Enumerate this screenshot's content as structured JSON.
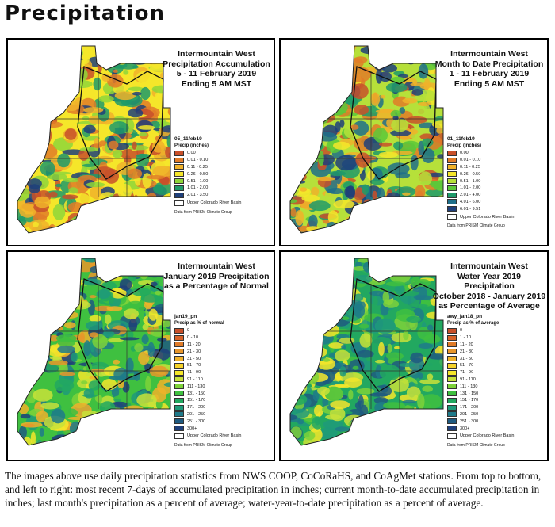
{
  "page_title": "Precipitation",
  "panels": [
    {
      "id": "p1",
      "title": [
        "Intermountain West",
        "Precipitation Accumulation",
        "5 - 11 February 2019",
        "Ending 5 AM MST"
      ],
      "legend_name": "05_11feb19",
      "legend_unit": "Precip (inches)",
      "legend_items": [
        {
          "label": "0.00",
          "color": "#c8502a"
        },
        {
          "label": "0.01 - 0.10",
          "color": "#e07b28"
        },
        {
          "label": "0.11 - 0.25",
          "color": "#f0b22a"
        },
        {
          "label": "0.26 - 0.50",
          "color": "#f5e62a"
        },
        {
          "label": "0.51 - 1.00",
          "color": "#8ed63a"
        },
        {
          "label": "1.01 - 2.00",
          "color": "#1f9a6a"
        },
        {
          "label": "2.01 - 3.50",
          "color": "#1f3f7a"
        }
      ],
      "map_palette": [
        "#c8502a",
        "#e07b28",
        "#f0b22a",
        "#f5e62a",
        "#8ed63a",
        "#1f9a6a",
        "#1f3f7a"
      ],
      "basin_label": "Upper Colorado River Basin",
      "source": "Data from PRISM Climate Group"
    },
    {
      "id": "p2",
      "title": [
        "Intermountain West",
        "Month to Date Precipitation",
        "1 - 11 February 2019",
        "Ending 5 AM MST"
      ],
      "legend_name": "01_11feb19",
      "legend_unit": "Precip (inches)",
      "legend_items": [
        {
          "label": "0.00",
          "color": "#c8502a"
        },
        {
          "label": "0.01 - 0.10",
          "color": "#e07b28"
        },
        {
          "label": "0.11 - 0.25",
          "color": "#f0b22a"
        },
        {
          "label": "0.26 - 0.50",
          "color": "#f5e62a"
        },
        {
          "label": "0.51 - 1.00",
          "color": "#b6e03a"
        },
        {
          "label": "1.01 - 2.00",
          "color": "#5cc83a"
        },
        {
          "label": "2.01 - 4.00",
          "color": "#1f9a6a"
        },
        {
          "label": "4.01 - 6.00",
          "color": "#1f6f8a"
        },
        {
          "label": "6.01 - 9.51",
          "color": "#1f3f7a"
        }
      ],
      "map_palette": [
        "#c8502a",
        "#e07b28",
        "#f0b22a",
        "#f5e62a",
        "#b6e03a",
        "#5cc83a",
        "#1f9a6a",
        "#1f6f8a",
        "#1f3f7a"
      ],
      "basin_label": "Upper Colorado River Basin",
      "source": "Data from PRISM Climate Group"
    },
    {
      "id": "p3",
      "title": [
        "Intermountain West",
        "January 2019 Precipitation",
        "as a Percentage of Normal"
      ],
      "legend_name": "jan19_pn",
      "legend_unit": "Precip as % of normal",
      "legend_items": [
        {
          "label": "0",
          "color": "#c8502a"
        },
        {
          "label": "0 - 10",
          "color": "#d8632a"
        },
        {
          "label": "11 - 20",
          "color": "#e07b28"
        },
        {
          "label": "21 - 30",
          "color": "#e8962a"
        },
        {
          "label": "31 - 50",
          "color": "#f0b22a"
        },
        {
          "label": "51 - 70",
          "color": "#f5d22a"
        },
        {
          "label": "71 - 90",
          "color": "#f5e62a"
        },
        {
          "label": "91 - 110",
          "color": "#c8e23a"
        },
        {
          "label": "111 - 130",
          "color": "#7ed23a"
        },
        {
          "label": "131 - 150",
          "color": "#3fc040"
        },
        {
          "label": "151 - 170",
          "color": "#22a860"
        },
        {
          "label": "171 - 200",
          "color": "#1f9a7a"
        },
        {
          "label": "201 - 250",
          "color": "#1f7a8a"
        },
        {
          "label": "251 - 300",
          "color": "#1f5a80"
        },
        {
          "label": "300+",
          "color": "#1f3f7a"
        }
      ],
      "map_palette": [
        "#e8962a",
        "#f0b22a",
        "#f5e62a",
        "#c8e23a",
        "#7ed23a",
        "#3fc040",
        "#22a860",
        "#1f9a7a",
        "#1f7a8a",
        "#1f5a80",
        "#1f3f7a"
      ],
      "basin_label": "Upper Colorado River Basin",
      "source": "Data from PRISM Climate Group"
    },
    {
      "id": "p4",
      "title": [
        "Intermountain West",
        "Water Year 2019 Precipitation",
        "October 2018 - January 2019",
        "as Percentage of Average"
      ],
      "legend_name": "awy_jan18_pn",
      "legend_unit": "Precip as % of average",
      "legend_items": [
        {
          "label": "0",
          "color": "#c8502a"
        },
        {
          "label": "1 - 10",
          "color": "#d8632a"
        },
        {
          "label": "11 - 20",
          "color": "#e07b28"
        },
        {
          "label": "21 - 30",
          "color": "#e8962a"
        },
        {
          "label": "31 - 50",
          "color": "#f0b22a"
        },
        {
          "label": "51 - 70",
          "color": "#f5d22a"
        },
        {
          "label": "71 - 90",
          "color": "#f5e62a"
        },
        {
          "label": "91 - 110",
          "color": "#c8e23a"
        },
        {
          "label": "111 - 130",
          "color": "#7ed23a"
        },
        {
          "label": "131 - 150",
          "color": "#3fc040"
        },
        {
          "label": "151 - 170",
          "color": "#22a860"
        },
        {
          "label": "171 - 200",
          "color": "#1f9a7a"
        },
        {
          "label": "201 - 250",
          "color": "#1f7a8a"
        },
        {
          "label": "251 - 300",
          "color": "#1f5a80"
        },
        {
          "label": "300+",
          "color": "#1f3f7a"
        }
      ],
      "map_palette": [
        "#f5e62a",
        "#c8e23a",
        "#7ed23a",
        "#3fc040",
        "#22a860",
        "#1f9a7a",
        "#1f7a8a",
        "#1f5a80"
      ],
      "basin_label": "Upper Colorado River Basin",
      "source": "Data from PRISM Climate Group"
    }
  ],
  "caption": "The images above use daily precipitation statistics from NWS COOP, CoCoRaHS, and CoAgMet stations. From top to bottom, and left to right: most recent 7-days of accumulated precipitation in inches; current month-to-date accumulated precipitation in inches; last month's precipitation as a percent of average; water-year-to-date precipitation as a percent of average."
}
